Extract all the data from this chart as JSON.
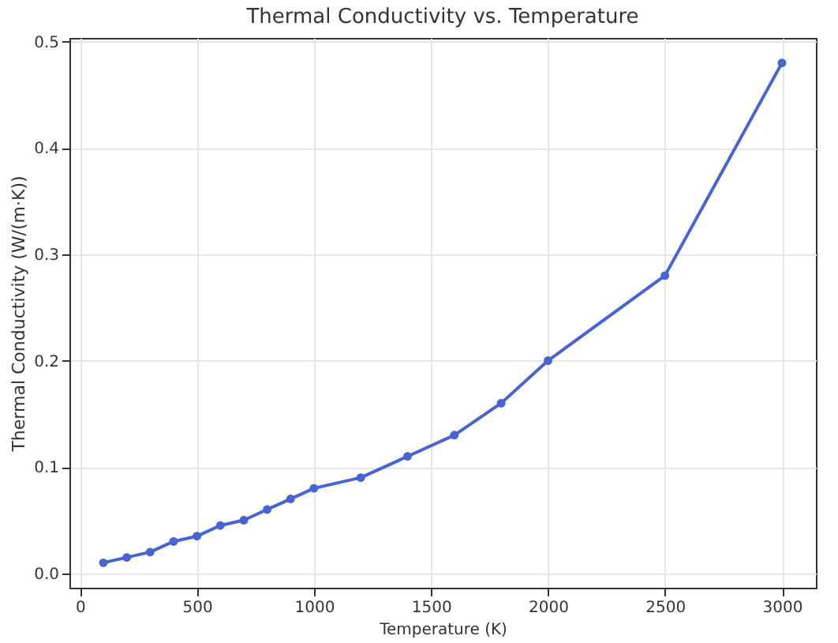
{
  "chart_data": {
    "type": "line",
    "title": "Thermal Conductivity vs. Temperature",
    "xlabel": "Temperature (K)",
    "ylabel": "Thermal Conductivity (W/(m·K))",
    "x": [
      100,
      200,
      300,
      400,
      500,
      600,
      700,
      800,
      900,
      1000,
      1200,
      1400,
      1600,
      1800,
      2000,
      2500,
      3000
    ],
    "series": [
      {
        "color": "#4863d3",
        "values": [
          0.01,
          0.015,
          0.02,
          0.03,
          0.035,
          0.045,
          0.05,
          0.06,
          0.07,
          0.08,
          0.09,
          0.11,
          0.13,
          0.16,
          0.2,
          0.28,
          0.48
        ]
      }
    ],
    "xlim": [
      -45,
      3145
    ],
    "ylim": [
      -0.0135,
      0.5035
    ],
    "xticks": [
      0,
      500,
      1000,
      1500,
      2000,
      2500,
      3000
    ],
    "yticks": [
      {
        "value": 0,
        "label": "0.0"
      },
      0.1,
      0.2,
      0.3,
      0.4,
      0.5
    ],
    "grid": true,
    "marker": "circle",
    "line_style": "solid"
  }
}
